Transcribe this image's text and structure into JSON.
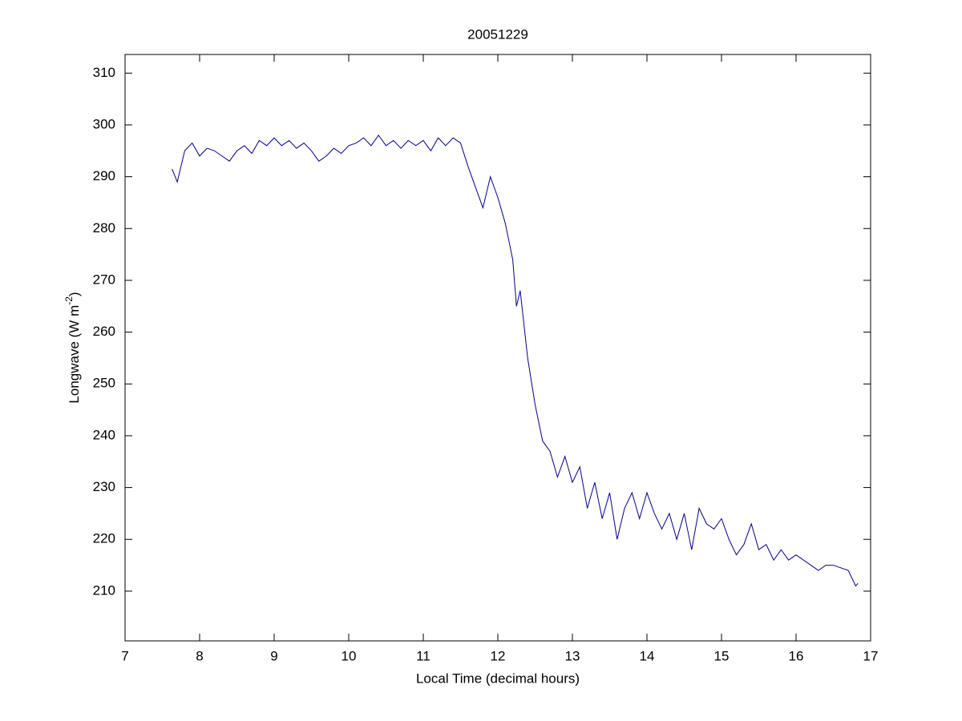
{
  "chart_data": {
    "type": "line",
    "title": "20051229",
    "xlabel": "Local Time (decimal hours)",
    "ylabel": [
      "Longwave (W m",
      "-2",
      ")"
    ],
    "x": [
      7.63,
      7.7,
      7.8,
      7.9,
      8.0,
      8.1,
      8.2,
      8.3,
      8.4,
      8.5,
      8.6,
      8.7,
      8.8,
      8.9,
      9.0,
      9.1,
      9.2,
      9.3,
      9.4,
      9.5,
      9.6,
      9.7,
      9.8,
      9.9,
      10.0,
      10.1,
      10.2,
      10.3,
      10.4,
      10.5,
      10.6,
      10.7,
      10.8,
      10.9,
      11.0,
      11.1,
      11.2,
      11.3,
      11.4,
      11.5,
      11.6,
      11.7,
      11.8,
      11.9,
      12.0,
      12.1,
      12.2,
      12.25,
      12.3,
      12.4,
      12.5,
      12.6,
      12.7,
      12.8,
      12.9,
      13.0,
      13.1,
      13.2,
      13.3,
      13.4,
      13.5,
      13.6,
      13.7,
      13.8,
      13.9,
      14.0,
      14.1,
      14.2,
      14.3,
      14.4,
      14.5,
      14.6,
      14.7,
      14.8,
      14.9,
      15.0,
      15.1,
      15.2,
      15.3,
      15.4,
      15.5,
      15.6,
      15.7,
      15.8,
      15.9,
      16.0,
      16.1,
      16.2,
      16.3,
      16.4,
      16.5,
      16.6,
      16.7,
      16.8,
      16.83
    ],
    "series": [
      {
        "name": "Longwave",
        "color": "#00008b",
        "values": [
          291.5,
          289,
          295,
          296.5,
          294,
          295.5,
          295,
          294,
          293,
          295,
          296,
          294.5,
          297,
          296,
          297.5,
          296,
          297,
          295.5,
          296.5,
          295,
          293,
          294,
          295.5,
          294.5,
          296,
          296.5,
          297.5,
          296,
          298,
          296,
          297,
          295.5,
          297,
          296,
          297,
          295,
          297.5,
          296,
          297.5,
          296.5,
          292,
          288,
          284,
          290,
          286,
          281,
          274,
          265,
          268,
          255,
          246,
          239,
          237,
          232,
          236,
          231,
          234,
          226,
          231,
          224,
          229,
          220,
          226,
          229,
          224,
          229,
          225,
          222,
          225,
          220,
          225,
          218,
          226,
          223,
          222,
          224,
          220,
          217,
          219,
          223,
          218,
          219,
          216,
          218,
          216,
          217,
          216,
          215,
          214,
          215,
          215,
          214.5,
          214,
          211,
          211.5
        ]
      }
    ],
    "xlim": [
      7,
      17
    ],
    "ylim": [
      200.4,
      313.6
    ],
    "xticks": [
      7,
      8,
      9,
      10,
      11,
      12,
      13,
      14,
      15,
      16,
      17
    ],
    "yticks": [
      210,
      220,
      230,
      240,
      250,
      260,
      270,
      280,
      290,
      300,
      310
    ]
  }
}
